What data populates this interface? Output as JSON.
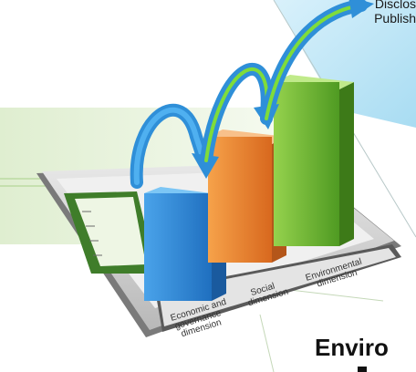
{
  "top_lines": [
    "Disclos",
    "Publish"
  ],
  "bars": [
    {
      "label": "Economic and governance dimension",
      "color": "#3b8fd9",
      "lines": [
        "Economic and",
        "governance",
        "dimension"
      ]
    },
    {
      "label": "Social dimension",
      "color": "#f08a2c",
      "lines": [
        "Social",
        "dimension"
      ]
    },
    {
      "label": "Environmental dimension",
      "color": "#7cc23a",
      "lines": [
        "Environmental",
        "dimension"
      ]
    }
  ],
  "heading": "Enviro",
  "colors": {
    "arrow": "#2f8fd8",
    "arrow_inner": "#7fdc3a",
    "panel": "#e9f3dc",
    "sky": "#bfe6f6"
  }
}
